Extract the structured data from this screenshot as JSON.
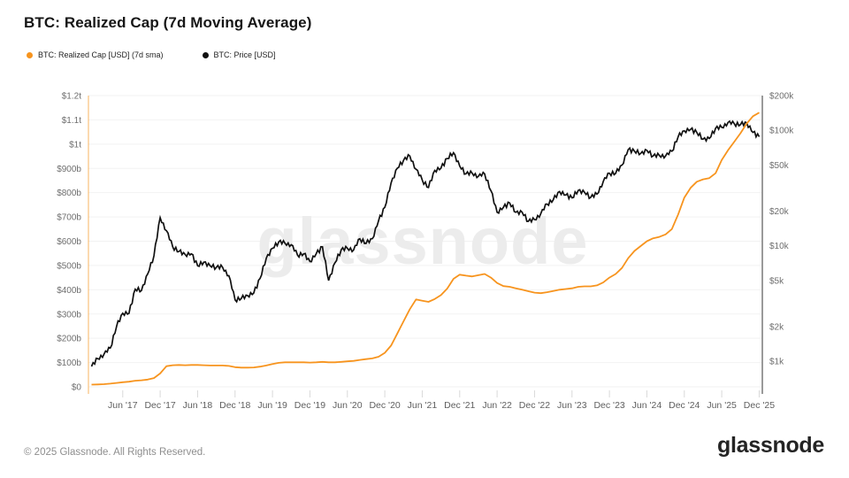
{
  "header": {
    "title": "BTC: Realized Cap (7d Moving Average)"
  },
  "watermark": "glassnode",
  "footer": {
    "copyright": "© 2025 Glassnode. All Rights Reserved.",
    "brand": "glassnode"
  },
  "colors": {
    "realized_cap_orange": "#F7941E",
    "price_black": "#111111",
    "grid": "#F2F2F2",
    "watermark_gray": "#ECECEC",
    "axis_left_line": "rgba(247,148,30,0.35)",
    "axis_right_line": "#9A9A9A",
    "tick_text": "#6E6E6E",
    "x_tick_text": "#5F5F5F"
  },
  "chart_data": {
    "type": "line",
    "title": "BTC: Realized Cap (7d Moving Average)",
    "x_start": "2017-01",
    "x_interval": "monthly",
    "x_points": 108,
    "x_tick_labels": [
      "Jun '17",
      "Dec '17",
      "Jun '18",
      "Dec '18",
      "Jun '19",
      "Dec '19",
      "Jun '20",
      "Dec '20",
      "Jun '21",
      "Dec '21",
      "Jun '22",
      "Dec '22",
      "Jun '23",
      "Dec '23",
      "Jun '24",
      "Dec '24",
      "Jun '25",
      "Dec '25"
    ],
    "left_axis": {
      "scale": "linear",
      "unit": "USD",
      "min": 0,
      "max": 1200,
      "value_unit": "billions USD",
      "tick_step": 100,
      "tick_labels": [
        "$0",
        "$100b",
        "$200b",
        "$300b",
        "$400b",
        "$500b",
        "$600b",
        "$700b",
        "$800b",
        "$900b",
        "$1t",
        "$1.1t",
        "$1.2t"
      ]
    },
    "right_axis": {
      "scale": "log",
      "unit": "USD",
      "ticks": [
        1000,
        2000,
        5000,
        10000,
        20000,
        50000,
        100000,
        200000
      ],
      "tick_labels": [
        "$1k",
        "$2k",
        "$5k",
        "$10k",
        "$20k",
        "$50k",
        "$100k",
        "$200k"
      ]
    },
    "grid": true,
    "legend_position": "top-left",
    "series": [
      {
        "name": "BTC: Realized Cap [USD] (7d sma)",
        "color": "#F7941E",
        "axis": "left",
        "unit": "billions USD",
        "values": [
          9,
          10,
          11,
          13,
          16,
          19,
          21,
          25,
          27,
          30,
          36,
          55,
          85,
          89,
          90,
          89,
          90,
          90,
          89,
          88,
          88,
          88,
          86,
          81,
          79,
          79,
          80,
          83,
          88,
          94,
          99,
          101,
          101,
          101,
          101,
          100,
          101,
          103,
          101,
          101,
          103,
          105,
          107,
          111,
          114,
          117,
          124,
          140,
          170,
          220,
          270,
          320,
          360,
          355,
          350,
          362,
          378,
          405,
          445,
          462,
          458,
          455,
          460,
          465,
          450,
          428,
          415,
          412,
          406,
          400,
          394,
          388,
          386,
          390,
          395,
          400,
          403,
          406,
          412,
          414,
          414,
          418,
          430,
          450,
          465,
          490,
          530,
          560,
          580,
          600,
          612,
          618,
          628,
          650,
          710,
          780,
          820,
          845,
          855,
          860,
          880,
          935,
          975,
          1010,
          1045,
          1085,
          1115,
          1130
        ]
      },
      {
        "name": "BTC: Price [USD]",
        "color": "#111111",
        "axis": "right",
        "unit": "USD",
        "values": [
          900,
          1050,
          1150,
          1300,
          2000,
          2600,
          2600,
          4200,
          4100,
          5700,
          8200,
          17500,
          13500,
          9800,
          8900,
          8400,
          8500,
          6700,
          7200,
          6700,
          6500,
          6500,
          5500,
          3400,
          3500,
          3700,
          3900,
          5200,
          7800,
          9500,
          10800,
          10500,
          10200,
          8300,
          8500,
          7300,
          8500,
          9800,
          5000,
          7100,
          9200,
          9500,
          9200,
          11500,
          10500,
          11500,
          16500,
          21500,
          35000,
          47000,
          55000,
          60000,
          46000,
          37000,
          32000,
          45000,
          47000,
          57000,
          64000,
          49000,
          42000,
          42500,
          40000,
          42000,
          30000,
          19500,
          21500,
          23500,
          19500,
          19500,
          16300,
          16800,
          19000,
          23000,
          25000,
          29500,
          27500,
          26000,
          30200,
          29000,
          26300,
          28000,
          36000,
          42500,
          42500,
          50000,
          68000,
          66000,
          63000,
          67000,
          60000,
          60500,
          60000,
          66000,
          88000,
          99000,
          102000,
          96000,
          84000,
          85000,
          104000,
          106000,
          117000,
          114000,
          112000,
          116000,
          96000,
          88000
        ]
      }
    ]
  }
}
